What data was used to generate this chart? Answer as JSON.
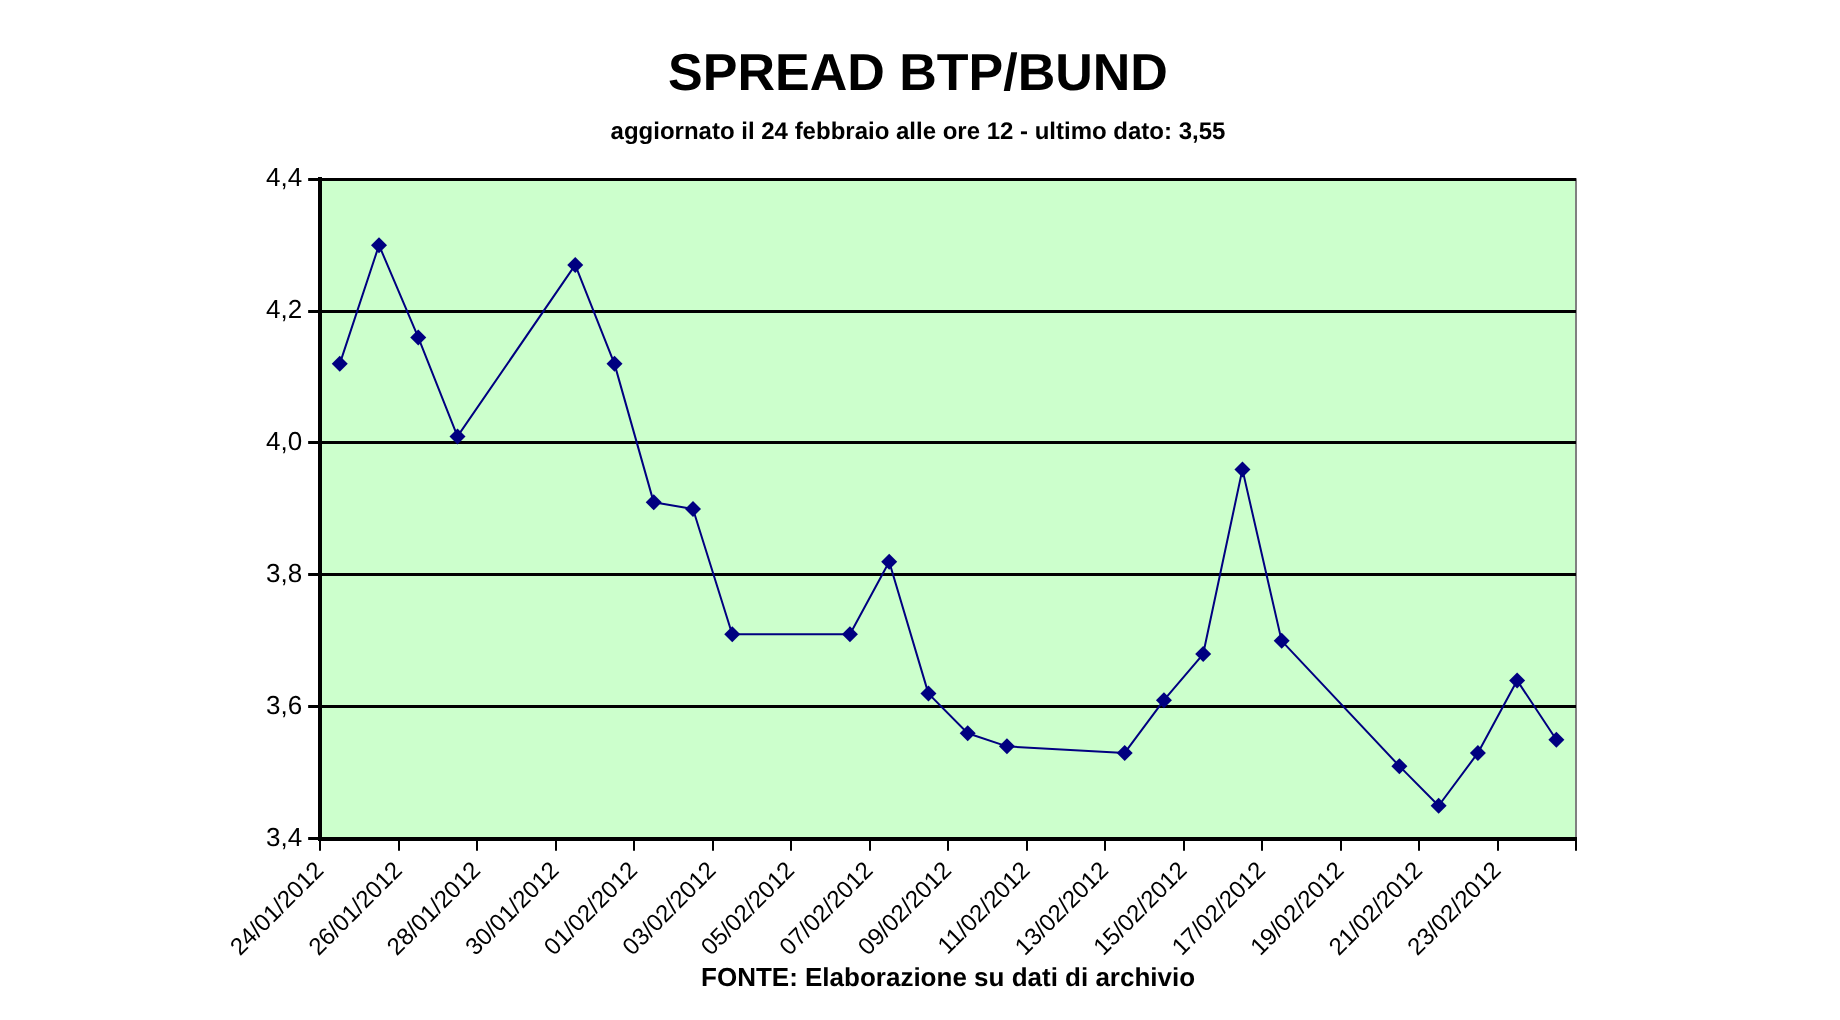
{
  "chart_data": {
    "type": "line",
    "title": "SPREAD BTP/BUND",
    "subtitle": "aggiornato il 24 febbraio alle ore 12 - ultimo dato: 3,55",
    "annotations": [
      "FONTE: Elaborazione su dati di archivio"
    ],
    "x": [
      "2012-01-24T12:00",
      "2012-01-25T12:00",
      "2012-01-26T12:00",
      "2012-01-27T12:00",
      "2012-01-30T12:00",
      "2012-01-31T12:00",
      "2012-02-01T12:00",
      "2012-02-02T12:00",
      "2012-02-03T12:00",
      "2012-02-06T12:00",
      "2012-02-07T12:00",
      "2012-02-08T12:00",
      "2012-02-09T12:00",
      "2012-02-10T12:00",
      "2012-02-13T12:00",
      "2012-02-14T12:00",
      "2012-02-15T12:00",
      "2012-02-16T12:00",
      "2012-02-17T12:00",
      "2012-02-20T12:00",
      "2012-02-21T12:00",
      "2012-02-22T12:00",
      "2012-02-23T12:00",
      "2012-02-24T12:00"
    ],
    "series": [
      {
        "color": "#000080",
        "values": [
          4.12,
          4.3,
          4.16,
          4.01,
          4.27,
          4.12,
          3.91,
          3.9,
          3.71,
          3.71,
          3.82,
          3.62,
          3.56,
          3.54,
          3.53,
          3.61,
          3.68,
          3.96,
          3.7,
          3.51,
          3.45,
          3.53,
          3.64,
          3.55
        ]
      }
    ],
    "xlim": [
      "2012-01-24",
      "2012-02-25"
    ],
    "xticks": [
      {
        "value": "2012-01-24",
        "label": "24/01/2012"
      },
      {
        "value": "2012-01-26",
        "label": "26/01/2012"
      },
      {
        "value": "2012-01-28",
        "label": "28/01/2012"
      },
      {
        "value": "2012-01-30",
        "label": "30/01/2012"
      },
      {
        "value": "2012-02-01",
        "label": "01/02/2012"
      },
      {
        "value": "2012-02-03",
        "label": "03/02/2012"
      },
      {
        "value": "2012-02-05",
        "label": "05/02/2012"
      },
      {
        "value": "2012-02-07",
        "label": "07/02/2012"
      },
      {
        "value": "2012-02-09",
        "label": "09/02/2012"
      },
      {
        "value": "2012-02-11",
        "label": "11/02/2012"
      },
      {
        "value": "2012-02-13",
        "label": "13/02/2012"
      },
      {
        "value": "2012-02-15",
        "label": "15/02/2012"
      },
      {
        "value": "2012-02-17",
        "label": "17/02/2012"
      },
      {
        "value": "2012-02-19",
        "label": "19/02/2012"
      },
      {
        "value": "2012-02-21",
        "label": "21/02/2012"
      },
      {
        "value": "2012-02-23",
        "label": "23/02/2012"
      },
      {
        "value": "2012-02-25",
        "label": null
      }
    ],
    "ylim": [
      3.4,
      4.4
    ],
    "yticks": [
      {
        "value": 3.4,
        "label": "3,4"
      },
      {
        "value": 3.6,
        "label": "3,6"
      },
      {
        "value": 3.8,
        "label": "3,8"
      },
      {
        "value": 4.0,
        "label": "4,0"
      },
      {
        "value": 4.2,
        "label": "4,2"
      },
      {
        "value": 4.4,
        "label": "4,4"
      }
    ],
    "grid": "y",
    "legend": false,
    "marker": "diamond",
    "line_style": "solid"
  }
}
